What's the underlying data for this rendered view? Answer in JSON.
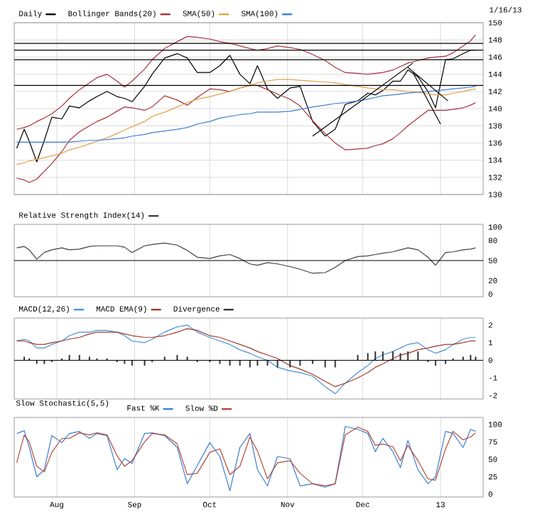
{
  "chart_data": [
    {
      "type": "line",
      "legend": "top left",
      "grid": true,
      "tick_labels": "y",
      "annotations": [
        "1/16/13"
      ],
      "x": [
        "2012-07-16",
        "2012-07-19",
        "2012-07-21",
        "2012-07-24",
        "2012-07-27",
        "2012-07-30",
        "2012-08-03",
        "2012-08-06",
        "2012-08-10",
        "2012-08-14",
        "2012-08-17",
        "2012-08-21",
        "2012-08-25",
        "2012-08-28",
        "2012-08-31",
        "2012-09-05",
        "2012-09-08",
        "2012-09-13",
        "2012-09-18",
        "2012-09-22",
        "2012-09-26",
        "2012-10-01",
        "2012-10-05",
        "2012-10-09",
        "2012-10-13",
        "2012-10-17",
        "2012-10-20",
        "2012-10-24",
        "2012-10-28",
        "2012-11-02",
        "2012-11-06",
        "2012-11-11",
        "2012-11-16",
        "2012-11-20",
        "2012-11-24",
        "2012-11-29",
        "2012-12-03",
        "2012-12-06",
        "2012-12-09",
        "2012-12-13",
        "2012-12-16",
        "2012-12-19",
        "2012-12-23",
        "2012-12-27",
        "2012-12-30",
        "2013-01-03",
        "2013-01-06",
        "2013-01-10",
        "2013-01-13",
        "2013-01-15"
      ],
      "xlim": [
        "2012-07-15",
        "2013-01-18"
      ],
      "xticks": [
        {
          "value": "2012-08-01",
          "label": null
        },
        {
          "value": "2012-09-01",
          "label": null
        },
        {
          "value": "2012-10-01",
          "label": null
        },
        {
          "value": "2012-11-01",
          "label": null
        },
        {
          "value": "2012-12-01",
          "label": null
        },
        {
          "value": "2013-01-01",
          "label": null
        }
      ],
      "ylim": [
        130,
        150
      ],
      "yticks": [
        130,
        132,
        134,
        136,
        138,
        140,
        142,
        144,
        146,
        148,
        150
      ],
      "ref_lines": [
        {
          "axis": "y",
          "value": 147.6
        },
        {
          "axis": "y",
          "value": 146.8
        },
        {
          "axis": "y",
          "value": 145.7
        },
        {
          "axis": "y",
          "value": 142.7
        }
      ],
      "series": [
        {
          "name": "Daily",
          "color": "#000000",
          "values": [
            135.4,
            137.6,
            136.2,
            133.8,
            136.3,
            139.0,
            138.8,
            140.3,
            140.1,
            140.9,
            141.4,
            142.0,
            141.4,
            141.2,
            140.8,
            142.6,
            144.0,
            145.9,
            146.4,
            145.9,
            144.2,
            144.2,
            145.0,
            146.2,
            144.0,
            142.9,
            145.0,
            142.3,
            141.2,
            142.4,
            142.6,
            138.5,
            136.8,
            137.6,
            140.5,
            140.9,
            141.8,
            141.6,
            142.1,
            143.2,
            143.2,
            144.5,
            143.7,
            142.0,
            140.1,
            145.7,
            145.8,
            146.4,
            146.8,
            146.8
          ]
        },
        {
          "name": "Bollinger Bands(20)",
          "color": "#a8323a",
          "values": [
            137.6,
            137.8,
            138.0,
            138.5,
            138.9,
            139.4,
            140.3,
            141.2,
            142.2,
            143.0,
            143.6,
            144.0,
            143.2,
            142.5,
            143.2,
            144.6,
            145.7,
            147.0,
            147.8,
            148.4,
            148.3,
            148.1,
            147.8,
            147.6,
            147.3,
            147.0,
            146.8,
            147.0,
            147.3,
            147.1,
            146.9,
            146.3,
            145.6,
            144.8,
            144.2,
            144.1,
            144.0,
            144.1,
            144.2,
            144.5,
            144.9,
            145.3,
            145.6,
            145.9,
            146.0,
            146.1,
            146.5,
            147.3,
            147.9,
            148.6
          ]
        },
        {
          "color": "#a8323a",
          "values": [
            131.9,
            131.7,
            131.4,
            131.8,
            132.7,
            133.6,
            135.0,
            136.3,
            137.3,
            138.0,
            138.5,
            139.0,
            139.7,
            140.2,
            140.1,
            139.8,
            140.2,
            141.5,
            141.0,
            140.4,
            141.3,
            142.3,
            142.2,
            142.0,
            142.4,
            142.7,
            142.7,
            142.2,
            141.7,
            141.1,
            140.3,
            138.6,
            137.1,
            136.0,
            135.2,
            135.3,
            135.4,
            135.7,
            135.9,
            136.5,
            137.2,
            138.0,
            138.9,
            139.8,
            139.8,
            139.8,
            139.9,
            140.1,
            140.4,
            140.7
          ]
        },
        {
          "name": "SMA(50)",
          "color": "#e3a24a",
          "values": [
            133.5,
            133.7,
            133.9,
            134.1,
            134.3,
            134.5,
            134.8,
            135.2,
            135.5,
            135.9,
            136.2,
            136.6,
            137.1,
            137.5,
            137.9,
            138.5,
            139.1,
            139.6,
            140.2,
            140.7,
            141.1,
            141.4,
            141.7,
            142.0,
            142.4,
            142.7,
            143.0,
            143.2,
            143.4,
            143.4,
            143.3,
            143.2,
            143.1,
            143.0,
            142.8,
            142.6,
            142.4,
            142.3,
            142.2,
            142.2,
            142.1,
            142.0,
            141.9,
            141.7,
            141.6,
            141.6,
            141.8,
            142.0,
            142.2,
            142.3
          ]
        },
        {
          "name": "SMA(100)",
          "color": "#3d7fd1",
          "values": [
            136.1,
            136.1,
            136.1,
            136.1,
            136.1,
            136.1,
            136.1,
            136.1,
            136.2,
            136.3,
            136.3,
            136.4,
            136.5,
            136.6,
            136.8,
            137.0,
            137.2,
            137.4,
            137.6,
            137.8,
            138.2,
            138.5,
            138.9,
            139.1,
            139.3,
            139.4,
            139.6,
            139.6,
            139.6,
            139.7,
            139.9,
            140.2,
            140.4,
            140.6,
            140.7,
            140.9,
            141.1,
            141.3,
            141.5,
            141.6,
            141.7,
            141.8,
            141.9,
            142.0,
            142.1,
            142.2,
            142.3,
            142.4,
            142.5,
            142.6
          ]
        },
        {
          "color": "#000000",
          "x": [
            "2012-11-11",
            "2012-12-21"
          ],
          "values": [
            136.8,
            145.3
          ]
        },
        {
          "color": "#000000",
          "x": [
            "2012-12-19",
            "2013-01-04"
          ],
          "values": [
            144.8,
            140.9
          ]
        },
        {
          "color": "#000000",
          "x": [
            "2012-12-21",
            "2013-01-01"
          ],
          "values": [
            144.2,
            138.2
          ]
        }
      ]
    },
    {
      "type": "line",
      "legend": "top left",
      "grid": "x",
      "tick_labels": "y",
      "x": [
        "2012-07-16",
        "2012-07-19",
        "2012-07-21",
        "2012-07-24",
        "2012-07-27",
        "2012-07-30",
        "2012-08-03",
        "2012-08-06",
        "2012-08-10",
        "2012-08-14",
        "2012-08-17",
        "2012-08-21",
        "2012-08-25",
        "2012-08-28",
        "2012-08-31",
        "2012-09-05",
        "2012-09-08",
        "2012-09-13",
        "2012-09-18",
        "2012-09-22",
        "2012-09-26",
        "2012-10-01",
        "2012-10-05",
        "2012-10-09",
        "2012-10-13",
        "2012-10-17",
        "2012-10-20",
        "2012-10-24",
        "2012-10-28",
        "2012-11-02",
        "2012-11-06",
        "2012-11-11",
        "2012-11-16",
        "2012-11-20",
        "2012-11-24",
        "2012-11-29",
        "2012-12-03",
        "2012-12-06",
        "2012-12-09",
        "2012-12-13",
        "2012-12-16",
        "2012-12-19",
        "2012-12-23",
        "2012-12-27",
        "2012-12-30",
        "2013-01-03",
        "2013-01-06",
        "2013-01-10",
        "2013-01-13",
        "2013-01-15"
      ],
      "xlim": [
        "2012-07-15",
        "2013-01-18"
      ],
      "xticks": [
        {
          "value": "2012-08-01",
          "label": null
        },
        {
          "value": "2012-09-01",
          "label": null
        },
        {
          "value": "2012-10-01",
          "label": null
        },
        {
          "value": "2012-11-01",
          "label": null
        },
        {
          "value": "2012-12-01",
          "label": null
        },
        {
          "value": "2013-01-01",
          "label": null
        }
      ],
      "ylim": [
        -4,
        104
      ],
      "yticks": [
        0,
        20,
        50,
        80,
        100
      ],
      "ref_lines": [
        {
          "axis": "y",
          "value": 50
        }
      ],
      "series": [
        {
          "name": "Relative Strength Index(14)",
          "color": "#404040",
          "values": [
            69,
            71,
            66,
            52,
            62,
            66,
            69,
            66,
            67,
            71,
            72,
            72,
            72,
            70,
            62,
            72,
            74,
            76,
            73,
            65,
            55,
            53,
            57,
            59,
            53,
            45,
            43,
            47,
            45,
            41,
            37,
            31,
            32,
            40,
            50,
            56,
            57,
            59,
            61,
            63,
            66,
            69,
            66,
            55,
            43,
            62,
            63,
            66,
            67,
            69
          ]
        }
      ]
    },
    {
      "type": "line",
      "legend": "top left",
      "grid": "x",
      "tick_labels": "y",
      "x": [
        "2012-07-16",
        "2012-07-19",
        "2012-07-21",
        "2012-07-24",
        "2012-07-27",
        "2012-07-30",
        "2012-08-03",
        "2012-08-06",
        "2012-08-10",
        "2012-08-14",
        "2012-08-17",
        "2012-08-21",
        "2012-08-25",
        "2012-08-28",
        "2012-08-31",
        "2012-09-05",
        "2012-09-08",
        "2012-09-13",
        "2012-09-18",
        "2012-09-22",
        "2012-09-26",
        "2012-10-01",
        "2012-10-05",
        "2012-10-09",
        "2012-10-13",
        "2012-10-17",
        "2012-10-20",
        "2012-10-24",
        "2012-10-28",
        "2012-11-02",
        "2012-11-06",
        "2012-11-11",
        "2012-11-16",
        "2012-11-20",
        "2012-11-24",
        "2012-11-29",
        "2012-12-03",
        "2012-12-06",
        "2012-12-09",
        "2012-12-13",
        "2012-12-16",
        "2012-12-19",
        "2012-12-23",
        "2012-12-27",
        "2012-12-30",
        "2013-01-03",
        "2013-01-06",
        "2013-01-10",
        "2013-01-13",
        "2013-01-15"
      ],
      "xlim": [
        "2012-07-15",
        "2013-01-18"
      ],
      "xticks": [
        {
          "value": "2012-08-01",
          "label": null
        },
        {
          "value": "2012-09-01",
          "label": null
        },
        {
          "value": "2012-10-01",
          "label": null
        },
        {
          "value": "2012-11-01",
          "label": null
        },
        {
          "value": "2012-12-01",
          "label": null
        },
        {
          "value": "2013-01-01",
          "label": null
        }
      ],
      "ylim": [
        -2.2,
        2.4
      ],
      "yticks": [
        -2,
        -1,
        0,
        1,
        2
      ],
      "ref_lines": [
        {
          "axis": "y",
          "value": 0
        }
      ],
      "series": [
        {
          "name": "MACD(12,26)",
          "color": "#4a90d9",
          "values": [
            1.1,
            1.2,
            1.1,
            0.7,
            0.7,
            0.9,
            1.1,
            1.4,
            1.6,
            1.6,
            1.7,
            1.7,
            1.6,
            1.4,
            1.1,
            1.0,
            1.2,
            1.6,
            1.9,
            2.0,
            1.6,
            1.3,
            1.1,
            0.9,
            0.6,
            0.4,
            0.2,
            0.0,
            -0.4,
            -0.6,
            -0.7,
            -0.9,
            -1.5,
            -1.9,
            -1.3,
            -0.7,
            -0.3,
            0.1,
            0.3,
            0.5,
            0.7,
            0.9,
            1.0,
            0.6,
            0.4,
            0.6,
            0.9,
            1.2,
            1.3,
            1.3
          ]
        },
        {
          "name": "MACD EMA(9)",
          "color": "#a03a2a",
          "values": [
            1.1,
            1.1,
            1.0,
            0.9,
            0.9,
            1.0,
            1.1,
            1.2,
            1.3,
            1.5,
            1.6,
            1.6,
            1.6,
            1.5,
            1.4,
            1.3,
            1.3,
            1.4,
            1.6,
            1.8,
            1.7,
            1.4,
            1.3,
            1.1,
            0.9,
            0.7,
            0.5,
            0.3,
            0.1,
            -0.3,
            -0.5,
            -0.8,
            -1.2,
            -1.5,
            -1.3,
            -1.0,
            -0.7,
            -0.4,
            -0.2,
            0.1,
            0.3,
            0.4,
            0.6,
            0.7,
            0.8,
            0.9,
            0.9,
            1.0,
            1.1,
            1.1
          ]
        },
        {
          "name": "Divergence",
          "type": "bar",
          "color": "#333333",
          "values": [
            0.0,
            0.2,
            0.1,
            -0.2,
            -0.2,
            -0.1,
            0.1,
            0.3,
            0.3,
            0.2,
            0.1,
            0.1,
            -0.1,
            -0.2,
            -0.3,
            -0.3,
            -0.1,
            0.2,
            0.3,
            0.2,
            -0.1,
            -0.1,
            -0.2,
            -0.3,
            -0.3,
            -0.4,
            -0.3,
            -0.3,
            -0.4,
            -0.4,
            -0.3,
            -0.2,
            -0.4,
            -0.4,
            0.0,
            0.3,
            0.4,
            0.5,
            0.5,
            0.5,
            0.4,
            0.5,
            0.5,
            -0.1,
            -0.3,
            -0.2,
            0.1,
            0.2,
            0.3,
            0.2
          ]
        }
      ]
    },
    {
      "type": "line",
      "title": "Slow Stochastic(5,5)",
      "legend": "top left",
      "grid": "x",
      "x": [
        "2012-07-16",
        "2012-07-19",
        "2012-07-21",
        "2012-07-24",
        "2012-07-27",
        "2012-07-30",
        "2012-08-03",
        "2012-08-06",
        "2012-08-10",
        "2012-08-14",
        "2012-08-17",
        "2012-08-21",
        "2012-08-25",
        "2012-08-28",
        "2012-08-31",
        "2012-09-05",
        "2012-09-08",
        "2012-09-13",
        "2012-09-18",
        "2012-09-22",
        "2012-09-26",
        "2012-10-01",
        "2012-10-05",
        "2012-10-09",
        "2012-10-13",
        "2012-10-17",
        "2012-10-20",
        "2012-10-24",
        "2012-10-28",
        "2012-11-02",
        "2012-11-06",
        "2012-11-11",
        "2012-11-16",
        "2012-11-20",
        "2012-11-24",
        "2012-11-29",
        "2012-12-03",
        "2012-12-06",
        "2012-12-09",
        "2012-12-13",
        "2012-12-16",
        "2012-12-19",
        "2012-12-23",
        "2012-12-27",
        "2012-12-30",
        "2013-01-03",
        "2013-01-06",
        "2013-01-10",
        "2013-01-13",
        "2013-01-15"
      ],
      "xlim": [
        "2012-07-15",
        "2013-01-18"
      ],
      "xticks": [
        {
          "value": "2012-08-01",
          "label": "Aug"
        },
        {
          "value": "2012-09-01",
          "label": "Sep"
        },
        {
          "value": "2012-10-01",
          "label": "Oct"
        },
        {
          "value": "2012-11-01",
          "label": "Nov"
        },
        {
          "value": "2012-12-01",
          "label": "Dec"
        },
        {
          "value": "2013-01-01",
          "label": "13"
        }
      ],
      "ylim": [
        -4,
        110
      ],
      "yticks": [
        0,
        25,
        50,
        75,
        100
      ],
      "series": [
        {
          "name": "Fast %K",
          "color": "#3f7fd0",
          "values": [
            87,
            91,
            67,
            25,
            35,
            84,
            74,
            87,
            90,
            80,
            87,
            84,
            35,
            51,
            44,
            87,
            88,
            84,
            67,
            15,
            41,
            74,
            54,
            5,
            67,
            87,
            35,
            12,
            54,
            51,
            12,
            15,
            10,
            15,
            97,
            93,
            87,
            61,
            80,
            61,
            38,
            77,
            35,
            15,
            25,
            90,
            87,
            67,
            93,
            90
          ]
        },
        {
          "name": "Slow %D",
          "color": "#b04a3a",
          "values": [
            45,
            85,
            75,
            40,
            32,
            60,
            80,
            80,
            88,
            85,
            88,
            85,
            55,
            40,
            48,
            75,
            87,
            85,
            72,
            28,
            30,
            60,
            65,
            28,
            40,
            82,
            62,
            22,
            45,
            48,
            30,
            15,
            12,
            15,
            85,
            96,
            90,
            70,
            72,
            68,
            48,
            70,
            48,
            22,
            20,
            65,
            90,
            78,
            82,
            88
          ]
        }
      ]
    }
  ]
}
